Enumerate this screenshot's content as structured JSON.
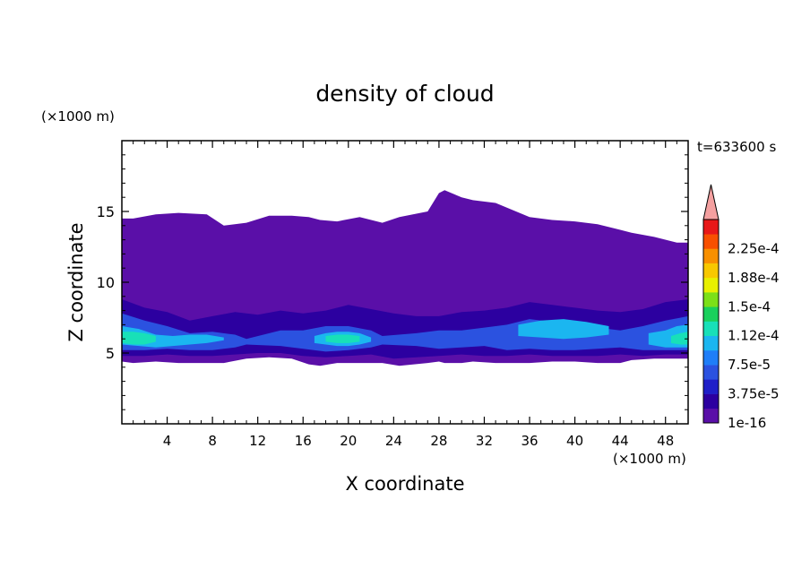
{
  "chart_data": {
    "type": "heatmap",
    "title": "density of cloud",
    "xlabel": "X coordinate",
    "ylabel": "Z coordinate",
    "x_unit": "(×1000 m)",
    "y_unit": "(×1000 m)",
    "time_label": "t=633600 s",
    "xlim": [
      0,
      50
    ],
    "ylim": [
      0,
      20
    ],
    "x_ticks": [
      4,
      8,
      12,
      16,
      20,
      24,
      28,
      32,
      36,
      40,
      44,
      48
    ],
    "x_tick_labels": [
      "4",
      "8",
      "12",
      "16",
      "20",
      "24",
      "28",
      "32",
      "36",
      "40",
      "44",
      "48"
    ],
    "y_ticks": [
      5,
      10,
      15
    ],
    "y_tick_labels": [
      "5",
      "10",
      "15"
    ],
    "colorbar": {
      "levels": [
        1e-16,
        1.875e-05,
        3.75e-05,
        5.625e-05,
        7.5e-05,
        9.375e-05,
        0.0001125,
        0.00013125,
        0.00015,
        0.00016875,
        0.0001875,
        0.00020625,
        0.000225,
        0.00024375
      ],
      "labels": [
        "1e-16",
        "3.75e-5",
        "7.5e-5",
        "1.12e-4",
        "1.5e-4",
        "1.88e-4",
        "2.25e-4"
      ],
      "colors": [
        "#5a0fa8",
        "#2c00a0",
        "#1f1fc8",
        "#2b52e0",
        "#1f7ef8",
        "#1bb6f0",
        "#18e0b8",
        "#1ad05c",
        "#7ce018",
        "#e8f000",
        "#f8c800",
        "#f89000",
        "#f85000",
        "#e81818"
      ],
      "extend_color": "#f4a0a0"
    },
    "cloud_layers": [
      {
        "level": 0,
        "x": [
          0,
          1,
          3,
          5,
          7.5,
          9,
          11,
          13,
          15,
          16.5,
          17.5,
          19,
          21,
          23,
          24.5,
          27,
          28,
          28.5,
          30,
          31,
          33,
          36,
          38,
          40,
          42,
          44,
          45,
          47,
          49,
          50
        ],
        "z_bottom": [
          4.4,
          4.3,
          4.4,
          4.3,
          4.3,
          4.3,
          4.6,
          4.7,
          4.6,
          4.2,
          4.1,
          4.3,
          4.3,
          4.3,
          4.1,
          4.3,
          4.4,
          4.3,
          4.3,
          4.4,
          4.3,
          4.3,
          4.4,
          4.4,
          4.3,
          4.3,
          4.5,
          4.6,
          4.6,
          4.6
        ],
        "z_top": [
          14.5,
          14.5,
          14.8,
          14.9,
          14.8,
          14.0,
          14.2,
          14.7,
          14.7,
          14.6,
          14.4,
          14.3,
          14.6,
          14.2,
          14.6,
          15.0,
          16.3,
          16.5,
          16.0,
          15.8,
          15.6,
          14.6,
          14.4,
          14.3,
          14.1,
          13.7,
          13.5,
          13.2,
          12.8,
          12.8
        ]
      },
      {
        "level": 1,
        "x": [
          0,
          2,
          4,
          6,
          8,
          10,
          12,
          14,
          16,
          18,
          20,
          22,
          24,
          26,
          28,
          30,
          32,
          34,
          36,
          38,
          40,
          42,
          44,
          46,
          48,
          50
        ],
        "z_bottom": [
          4.8,
          4.8,
          4.9,
          4.8,
          4.8,
          4.9,
          5.0,
          5.0,
          4.8,
          4.7,
          4.8,
          4.9,
          4.6,
          4.7,
          4.8,
          4.9,
          4.8,
          4.8,
          4.9,
          4.8,
          4.8,
          4.8,
          4.9,
          4.8,
          4.9,
          4.9
        ],
        "z_top": [
          8.8,
          8.2,
          7.9,
          7.3,
          7.6,
          7.9,
          7.7,
          8.0,
          7.8,
          8.0,
          8.4,
          8.1,
          7.8,
          7.6,
          7.6,
          7.9,
          8.0,
          8.2,
          8.6,
          8.4,
          8.2,
          8.0,
          7.9,
          8.1,
          8.6,
          8.8
        ]
      },
      {
        "level": 3,
        "x": [
          0,
          2,
          4,
          6,
          8,
          10,
          11,
          14,
          16,
          18,
          20,
          22,
          23,
          26,
          28,
          30,
          32,
          34,
          36,
          38,
          40,
          42,
          44,
          46,
          48,
          50
        ],
        "z_bottom": [
          5.2,
          5.2,
          5.3,
          5.2,
          5.2,
          5.4,
          5.6,
          5.5,
          5.3,
          5.1,
          5.2,
          5.4,
          5.6,
          5.5,
          5.3,
          5.4,
          5.5,
          5.2,
          5.3,
          5.2,
          5.2,
          5.3,
          5.4,
          5.2,
          5.2,
          5.2
        ],
        "z_top": [
          7.8,
          7.3,
          6.9,
          6.4,
          6.5,
          6.3,
          6.0,
          6.6,
          6.6,
          6.9,
          6.9,
          6.6,
          6.2,
          6.4,
          6.6,
          6.6,
          6.8,
          7.0,
          7.4,
          7.2,
          7.1,
          6.8,
          6.6,
          6.9,
          7.3,
          7.6
        ]
      },
      {
        "level": 5,
        "x": [
          0,
          1.5,
          3,
          4.5,
          6,
          7.5,
          9
        ],
        "z_bottom": [
          5.6,
          5.5,
          5.4,
          5.5,
          5.6,
          5.7,
          5.9
        ],
        "z_top": [
          6.9,
          6.7,
          6.3,
          6.2,
          6.3,
          6.3,
          6.1
        ]
      },
      {
        "level": 5,
        "x": [
          17,
          18,
          19,
          20,
          21,
          22
        ],
        "z_bottom": [
          5.7,
          5.6,
          5.5,
          5.5,
          5.6,
          5.8
        ],
        "z_top": [
          6.2,
          6.4,
          6.5,
          6.5,
          6.4,
          6.1
        ]
      },
      {
        "level": 5,
        "x": [
          35,
          37,
          39,
          41,
          43
        ],
        "z_bottom": [
          6.2,
          6.1,
          6.0,
          6.1,
          6.3
        ],
        "z_top": [
          7.0,
          7.3,
          7.4,
          7.2,
          6.9
        ]
      },
      {
        "level": 5,
        "x": [
          46.5,
          48,
          49,
          50
        ],
        "z_bottom": [
          5.6,
          5.4,
          5.4,
          5.4
        ],
        "z_top": [
          6.4,
          6.6,
          6.9,
          7.0
        ]
      },
      {
        "level": 6,
        "x": [
          0,
          1,
          2,
          3
        ],
        "z_bottom": [
          5.7,
          5.6,
          5.6,
          5.8
        ],
        "z_top": [
          6.5,
          6.5,
          6.4,
          6.2
        ]
      },
      {
        "level": 6,
        "x": [
          18,
          19,
          20,
          21
        ],
        "z_bottom": [
          5.8,
          5.7,
          5.7,
          5.8
        ],
        "z_top": [
          6.2,
          6.3,
          6.3,
          6.2
        ]
      },
      {
        "level": 6,
        "x": [
          48.5,
          49.3,
          50
        ],
        "z_bottom": [
          5.7,
          5.6,
          5.6
        ],
        "z_top": [
          6.2,
          6.4,
          6.5
        ]
      }
    ]
  }
}
